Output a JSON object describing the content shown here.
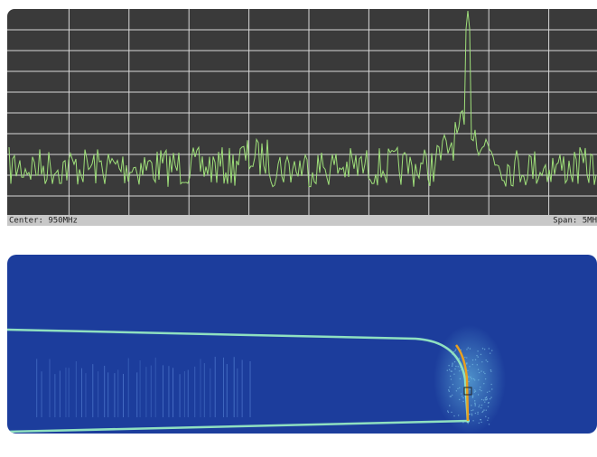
{
  "status_bar": {
    "center": "Center: 950MHz",
    "span": "Span: 5MH"
  }
}
